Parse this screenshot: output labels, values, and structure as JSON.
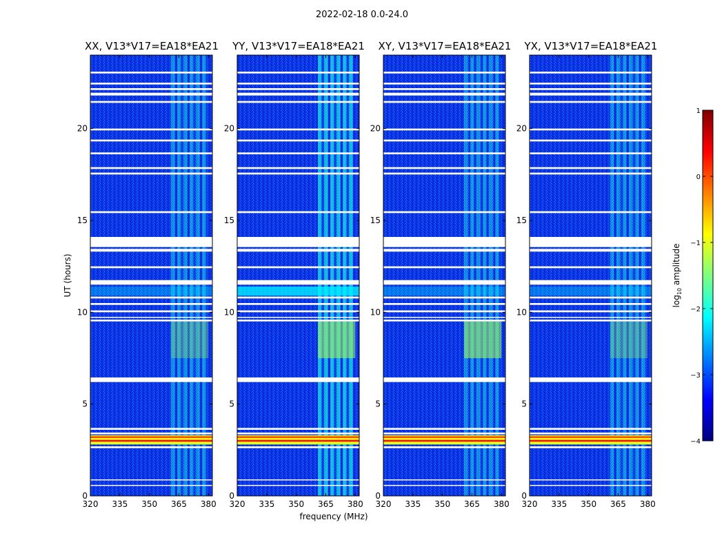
{
  "figure": {
    "suptitle": "2022-02-18 0.0-24.0",
    "xlabel": "frequency (MHz)",
    "ylabel": "UT (hours)",
    "colorbar_label": "log",
    "colorbar_label_sub": "10",
    "colorbar_label_rest": " amplitude"
  },
  "chart_data": {
    "type": "heatmap",
    "title": "2022-02-18 0.0-24.0",
    "xlabel": "frequency (MHz)",
    "ylabel": "UT (hours)",
    "xlim": [
      320,
      382
    ],
    "ylim": [
      0,
      24
    ],
    "xticks": [
      320,
      335,
      350,
      365,
      380
    ],
    "yticks": [
      0,
      5,
      10,
      15,
      20
    ],
    "colorbar": {
      "label": "log10 amplitude",
      "range": [
        -4,
        1
      ],
      "ticks": [
        1,
        0,
        -1,
        -2,
        -3,
        -4
      ],
      "tick_labels": [
        "1",
        "0",
        "−1",
        "−2",
        "−3",
        "−4"
      ],
      "colormap": "jet",
      "colors": [
        "#00007f",
        "#0000ff",
        "#007fff",
        "#00ffff",
        "#7fff7f",
        "#ffff00",
        "#ff7f00",
        "#ff0000",
        "#7f0000"
      ]
    },
    "panels": [
      {
        "title": "XX, V13*V17=EA18*EA21",
        "pol": "XX"
      },
      {
        "title": "YY, V13*V17=EA18*EA21",
        "pol": "YY"
      },
      {
        "title": "XY, V13*V17=EA18*EA21",
        "pol": "XY"
      },
      {
        "title": "YX, V13*V17=EA18*EA21",
        "pol": "YX"
      }
    ],
    "background_level": -3.0,
    "rfi_band_mhz": [
      361,
      380
    ],
    "rfi_band_level": -2.0,
    "flag_gaps_ut": [
      [
        0.55,
        0.6
      ],
      [
        0.85,
        0.9
      ],
      [
        2.6,
        2.7
      ],
      [
        3.35,
        3.45
      ],
      [
        3.6,
        3.7
      ],
      [
        6.2,
        6.45
      ],
      [
        9.5,
        9.6
      ],
      [
        9.7,
        9.75
      ],
      [
        10.0,
        10.1
      ],
      [
        10.4,
        10.5
      ],
      [
        10.75,
        10.85
      ],
      [
        11.5,
        11.75
      ],
      [
        12.4,
        12.5
      ],
      [
        13.3,
        13.45
      ],
      [
        13.55,
        14.1
      ],
      [
        15.4,
        15.5
      ],
      [
        17.5,
        17.6
      ],
      [
        17.8,
        17.9
      ],
      [
        18.6,
        18.7
      ],
      [
        19.3,
        19.4
      ],
      [
        19.9,
        20.0
      ],
      [
        21.4,
        21.5
      ],
      [
        21.8,
        21.95
      ],
      [
        22.1,
        22.2
      ],
      [
        22.4,
        22.5
      ],
      [
        23.0,
        23.1
      ]
    ],
    "strong_rfi_ut": [
      2.8,
      3.3
    ],
    "strong_rfi_level": 0.3
  }
}
